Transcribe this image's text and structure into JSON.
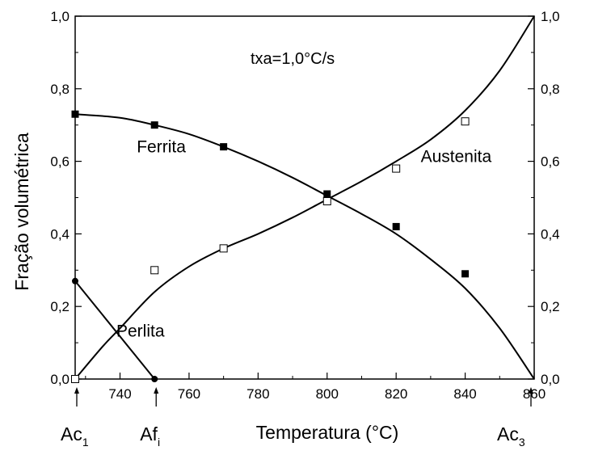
{
  "chart_data": {
    "type": "line",
    "xlabel": "Temperatura (°C)",
    "ylabel": "Fração volumétrica",
    "annotation": "txa=1,0°C/s",
    "xlim": [
      727,
      860
    ],
    "ylim": [
      0,
      1
    ],
    "x_ticks": [
      "740",
      "760",
      "780",
      "800",
      "820",
      "840",
      "860"
    ],
    "y_ticks": [
      "0,0",
      "0,2",
      "0,4",
      "0,6",
      "0,8",
      "1,0"
    ],
    "right_y_ticks": [
      "0,0",
      "0,2",
      "0,4",
      "0,6",
      "0,8",
      "1,0"
    ],
    "series": [
      {
        "name": "Ferrita",
        "marker": "filled-square",
        "points": [
          [
            727,
            0.73
          ],
          [
            750,
            0.7
          ],
          [
            770,
            0.64
          ],
          [
            800,
            0.51
          ],
          [
            820,
            0.42
          ],
          [
            840,
            0.29
          ]
        ],
        "curve": [
          [
            727,
            0.73
          ],
          [
            740,
            0.72
          ],
          [
            750,
            0.7
          ],
          [
            760,
            0.675
          ],
          [
            770,
            0.64
          ],
          [
            780,
            0.6
          ],
          [
            790,
            0.555
          ],
          [
            800,
            0.505
          ],
          [
            810,
            0.455
          ],
          [
            820,
            0.4
          ],
          [
            830,
            0.33
          ],
          [
            840,
            0.25
          ],
          [
            850,
            0.14
          ],
          [
            860,
            0.0
          ]
        ]
      },
      {
        "name": "Austenita",
        "marker": "open-square",
        "points": [
          [
            727,
            0.0
          ],
          [
            750,
            0.3
          ],
          [
            770,
            0.36
          ],
          [
            800,
            0.49
          ],
          [
            820,
            0.58
          ],
          [
            840,
            0.71
          ]
        ],
        "curve": [
          [
            727,
            0.0
          ],
          [
            735,
            0.09
          ],
          [
            740,
            0.14
          ],
          [
            750,
            0.24
          ],
          [
            760,
            0.31
          ],
          [
            770,
            0.36
          ],
          [
            780,
            0.4
          ],
          [
            790,
            0.445
          ],
          [
            800,
            0.495
          ],
          [
            810,
            0.545
          ],
          [
            820,
            0.6
          ],
          [
            830,
            0.66
          ],
          [
            840,
            0.74
          ],
          [
            850,
            0.85
          ],
          [
            860,
            1.0
          ]
        ]
      },
      {
        "name": "Perlita",
        "marker": "filled-circle",
        "points": [
          [
            727,
            0.27
          ],
          [
            750,
            0.0
          ]
        ],
        "curve": [
          [
            727,
            0.27
          ],
          [
            750,
            0.0
          ]
        ]
      }
    ],
    "markers": [
      {
        "label": "Ac",
        "sub": "1",
        "x": 727
      },
      {
        "label": "Af",
        "sub": "i",
        "x": 750
      },
      {
        "label": "Ac",
        "sub": "3",
        "x": 860
      }
    ]
  }
}
